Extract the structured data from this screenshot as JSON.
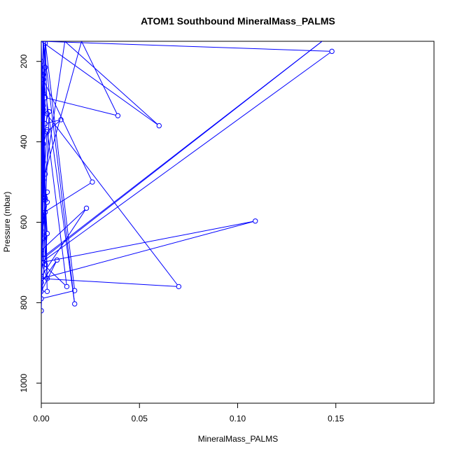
{
  "chart_data": {
    "type": "line",
    "title": "ATOM1 Southbound MineralMass_PALMS",
    "xlabel": "MineralMass_PALMS",
    "ylabel": "Pressure (mbar)",
    "xlim": [
      0,
      0.2
    ],
    "ylim": [
      1050,
      150
    ],
    "y_reversed": true,
    "x_ticks": [
      0.0,
      0.05,
      0.1,
      0.15
    ],
    "x_tick_labels": [
      "0.00",
      "0.05",
      "0.10",
      "0.15"
    ],
    "y_ticks": [
      200,
      400,
      600,
      800,
      1000
    ],
    "y_tick_labels": [
      "200",
      "400",
      "600",
      "800",
      "1000"
    ],
    "grid": false,
    "series_color": "#0000ff",
    "series": [
      {
        "x": [
          0.0,
          0.001,
          0.002,
          0.0,
          0.001,
          0.0,
          0.003,
          0.002,
          0.0,
          0.001,
          0.002,
          0.0,
          0.001,
          0.004,
          0.002,
          0.01,
          0.003,
          0.001,
          0.0,
          0.0,
          0.002,
          0.039,
          0.0205,
          0.001,
          0.0,
          0.148,
          0.0,
          0.06,
          0.012,
          0.002,
          0.0,
          0.026,
          0.001,
          0.0,
          0.003,
          0.002,
          0.003,
          0.0,
          0.0,
          0.023,
          0.0,
          0.001,
          0.07,
          0.0,
          0.109,
          0.0,
          0.003,
          0.001,
          0.0,
          0.008,
          0.0,
          0.003,
          0.0,
          0.017,
          0.001,
          0.002,
          0.003,
          0.0,
          0.017,
          0.002,
          0.0,
          0.001,
          0.0,
          0.003,
          0.013,
          0.0,
          0.001,
          0.0,
          0.002,
          0.0,
          0.143,
          0.001,
          0.0
        ],
        "y": [
          320,
          150,
          215,
          355,
          233,
          460,
          330,
          155,
          500,
          310,
          575,
          620,
          700,
          325,
          355,
          345,
          375,
          405,
          535,
          600,
          290,
          335,
          150,
          495,
          700,
          175,
          150,
          360,
          150,
          480,
          580,
          500,
          245,
          630,
          525,
          540,
          550,
          640,
          670,
          565,
          735,
          320,
          760,
          740,
          597,
          700,
          740,
          280,
          750,
          694,
          772,
          772,
          200,
          803,
          150,
          545,
          628,
          790,
          770,
          150,
          820,
          450,
          600,
          370,
          760,
          700,
          640,
          150,
          705,
          690,
          150,
          690,
          700
        ]
      }
    ]
  }
}
